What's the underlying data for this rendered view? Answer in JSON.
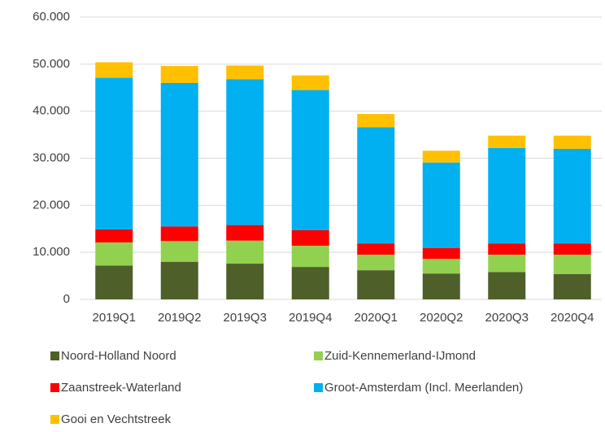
{
  "chart_data": {
    "type": "stacked_bar",
    "categories": [
      "2019Q1",
      "2019Q2",
      "2019Q3",
      "2019Q4",
      "2020Q1",
      "2020Q2",
      "2020Q3",
      "2020Q4"
    ],
    "series": [
      {
        "name": "Noord-Holland Noord",
        "color": "#4e5f2a",
        "values": [
          7200,
          8000,
          7600,
          6900,
          6200,
          5500,
          5800,
          5400
        ]
      },
      {
        "name": "Zuid-Kennemerland-IJmond",
        "color": "#92d050",
        "values": [
          4900,
          4400,
          4900,
          4500,
          3300,
          3100,
          3700,
          4100
        ]
      },
      {
        "name": "Zaanstreek-Waterland",
        "color": "#ff0000",
        "values": [
          2800,
          3100,
          3300,
          3300,
          2400,
          2300,
          2400,
          2400
        ]
      },
      {
        "name": "Groot-Amsterdam (Incl. Meerlanden)",
        "color": "#00b0f0",
        "values": [
          32200,
          30500,
          31000,
          29800,
          24700,
          18200,
          20300,
          20100
        ]
      },
      {
        "name": "Gooi en Vechtstreek",
        "color": "#ffc000",
        "values": [
          3300,
          3600,
          2900,
          3100,
          2800,
          2500,
          2600,
          2800
        ]
      }
    ],
    "ylim": [
      0,
      60000
    ],
    "yticks": [
      0,
      {
        "value": 10000,
        "label": "10.000"
      },
      {
        "value": 20000,
        "label": "20.000"
      },
      {
        "value": 30000,
        "label": "30.000"
      },
      {
        "value": 40000,
        "label": "40.000"
      },
      {
        "value": 50000,
        "label": "50.000"
      },
      {
        "value": 60000,
        "label": "60.000"
      }
    ],
    "grid": true,
    "legend": "bottom"
  }
}
